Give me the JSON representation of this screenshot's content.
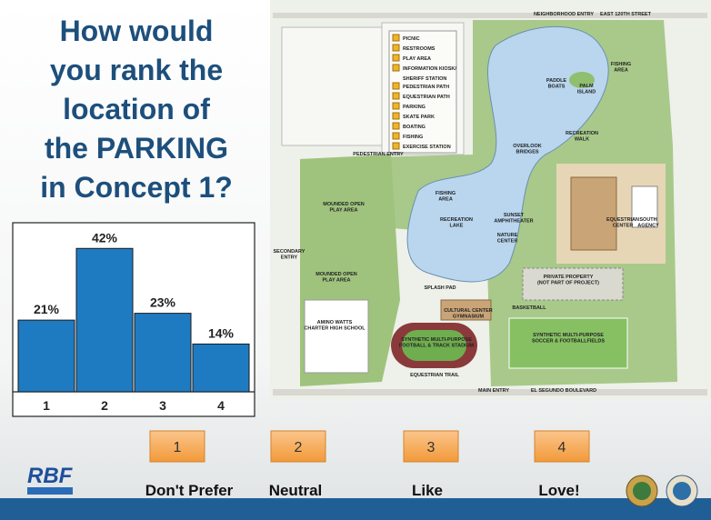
{
  "title_lines": [
    "How would",
    "you rank the",
    "location of",
    "the PARKING",
    "in Concept 1?"
  ],
  "chart_data": {
    "type": "bar",
    "categories": [
      "1",
      "2",
      "3",
      "4"
    ],
    "values": [
      21,
      42,
      23,
      14
    ],
    "value_labels": [
      "21%",
      "42%",
      "23%",
      "14%"
    ],
    "color": "#1f7bc1",
    "ylim": [
      0,
      45
    ]
  },
  "options": [
    {
      "number": "1",
      "label": "Don't Prefer"
    },
    {
      "number": "2",
      "label": "Neutral"
    },
    {
      "number": "3",
      "label": "Like"
    },
    {
      "number": "4",
      "label": "Love!"
    }
  ],
  "logo": "RBF",
  "map": {
    "legend": [
      "PICNIC",
      "RESTROOMS",
      "PLAY AREA",
      "INFORMATION KIOSK/",
      "SHERIFF STATION",
      "PEDESTRIAN PATH",
      "EQUESTRIAN PATH",
      "PARKING",
      "SKATE PARK",
      "BOATING",
      "FISHING",
      "EXERCISE STATION"
    ],
    "labels": [
      [
        "NEIGHBORHOOD ENTRY"
      ],
      [
        "EAST 120TH STREET"
      ],
      [
        "PADDLE",
        "BOATS"
      ],
      [
        "PALM",
        "ISLAND"
      ],
      [
        "FISHING",
        "AREA"
      ],
      [
        "OVERLOOK",
        "BRIDGES"
      ],
      [
        "RECREATION",
        "WALK"
      ],
      [
        "PEDESTRIAN ENTRY"
      ],
      [
        "MOUNDED OPEN",
        "PLAY AREA"
      ],
      [
        "FISHING",
        "AREA"
      ],
      [
        "RECREATION",
        "LAKE"
      ],
      [
        "SUNSET",
        "AMPHITHEATER"
      ],
      [
        "NATURE",
        "CENTER"
      ],
      [
        "EQUESTRIAN",
        "CENTER"
      ],
      [
        "SOUTH",
        "AGENCY"
      ],
      [
        "SECONDARY",
        "ENTRY"
      ],
      [
        "MOUNDED OPEN",
        "PLAY AREA"
      ],
      [
        "SPLASH PAD"
      ],
      [
        "PRIVATE PROPERTY",
        "(NOT PART OF PROJECT)"
      ],
      [
        "CULTURAL CENTER",
        "GYMNASIUM"
      ],
      [
        "BASKETBALL"
      ],
      [
        "AMINO WATTS",
        "CHARTER HIGH SCHOOL"
      ],
      [
        "SYNTHETIC MULTI-PURPOSE",
        "FOOTBALL & TRACK STADIUM"
      ],
      [
        "SYNTHETIC MULTI-PURPOSE",
        "SOCCER & FOOTBALLFIELDS"
      ],
      [
        "EQUESTRIAN TRAIL"
      ],
      [
        "MAIN ENTRY"
      ],
      [
        "EL SEGUNDO BOULEVARD"
      ]
    ]
  }
}
